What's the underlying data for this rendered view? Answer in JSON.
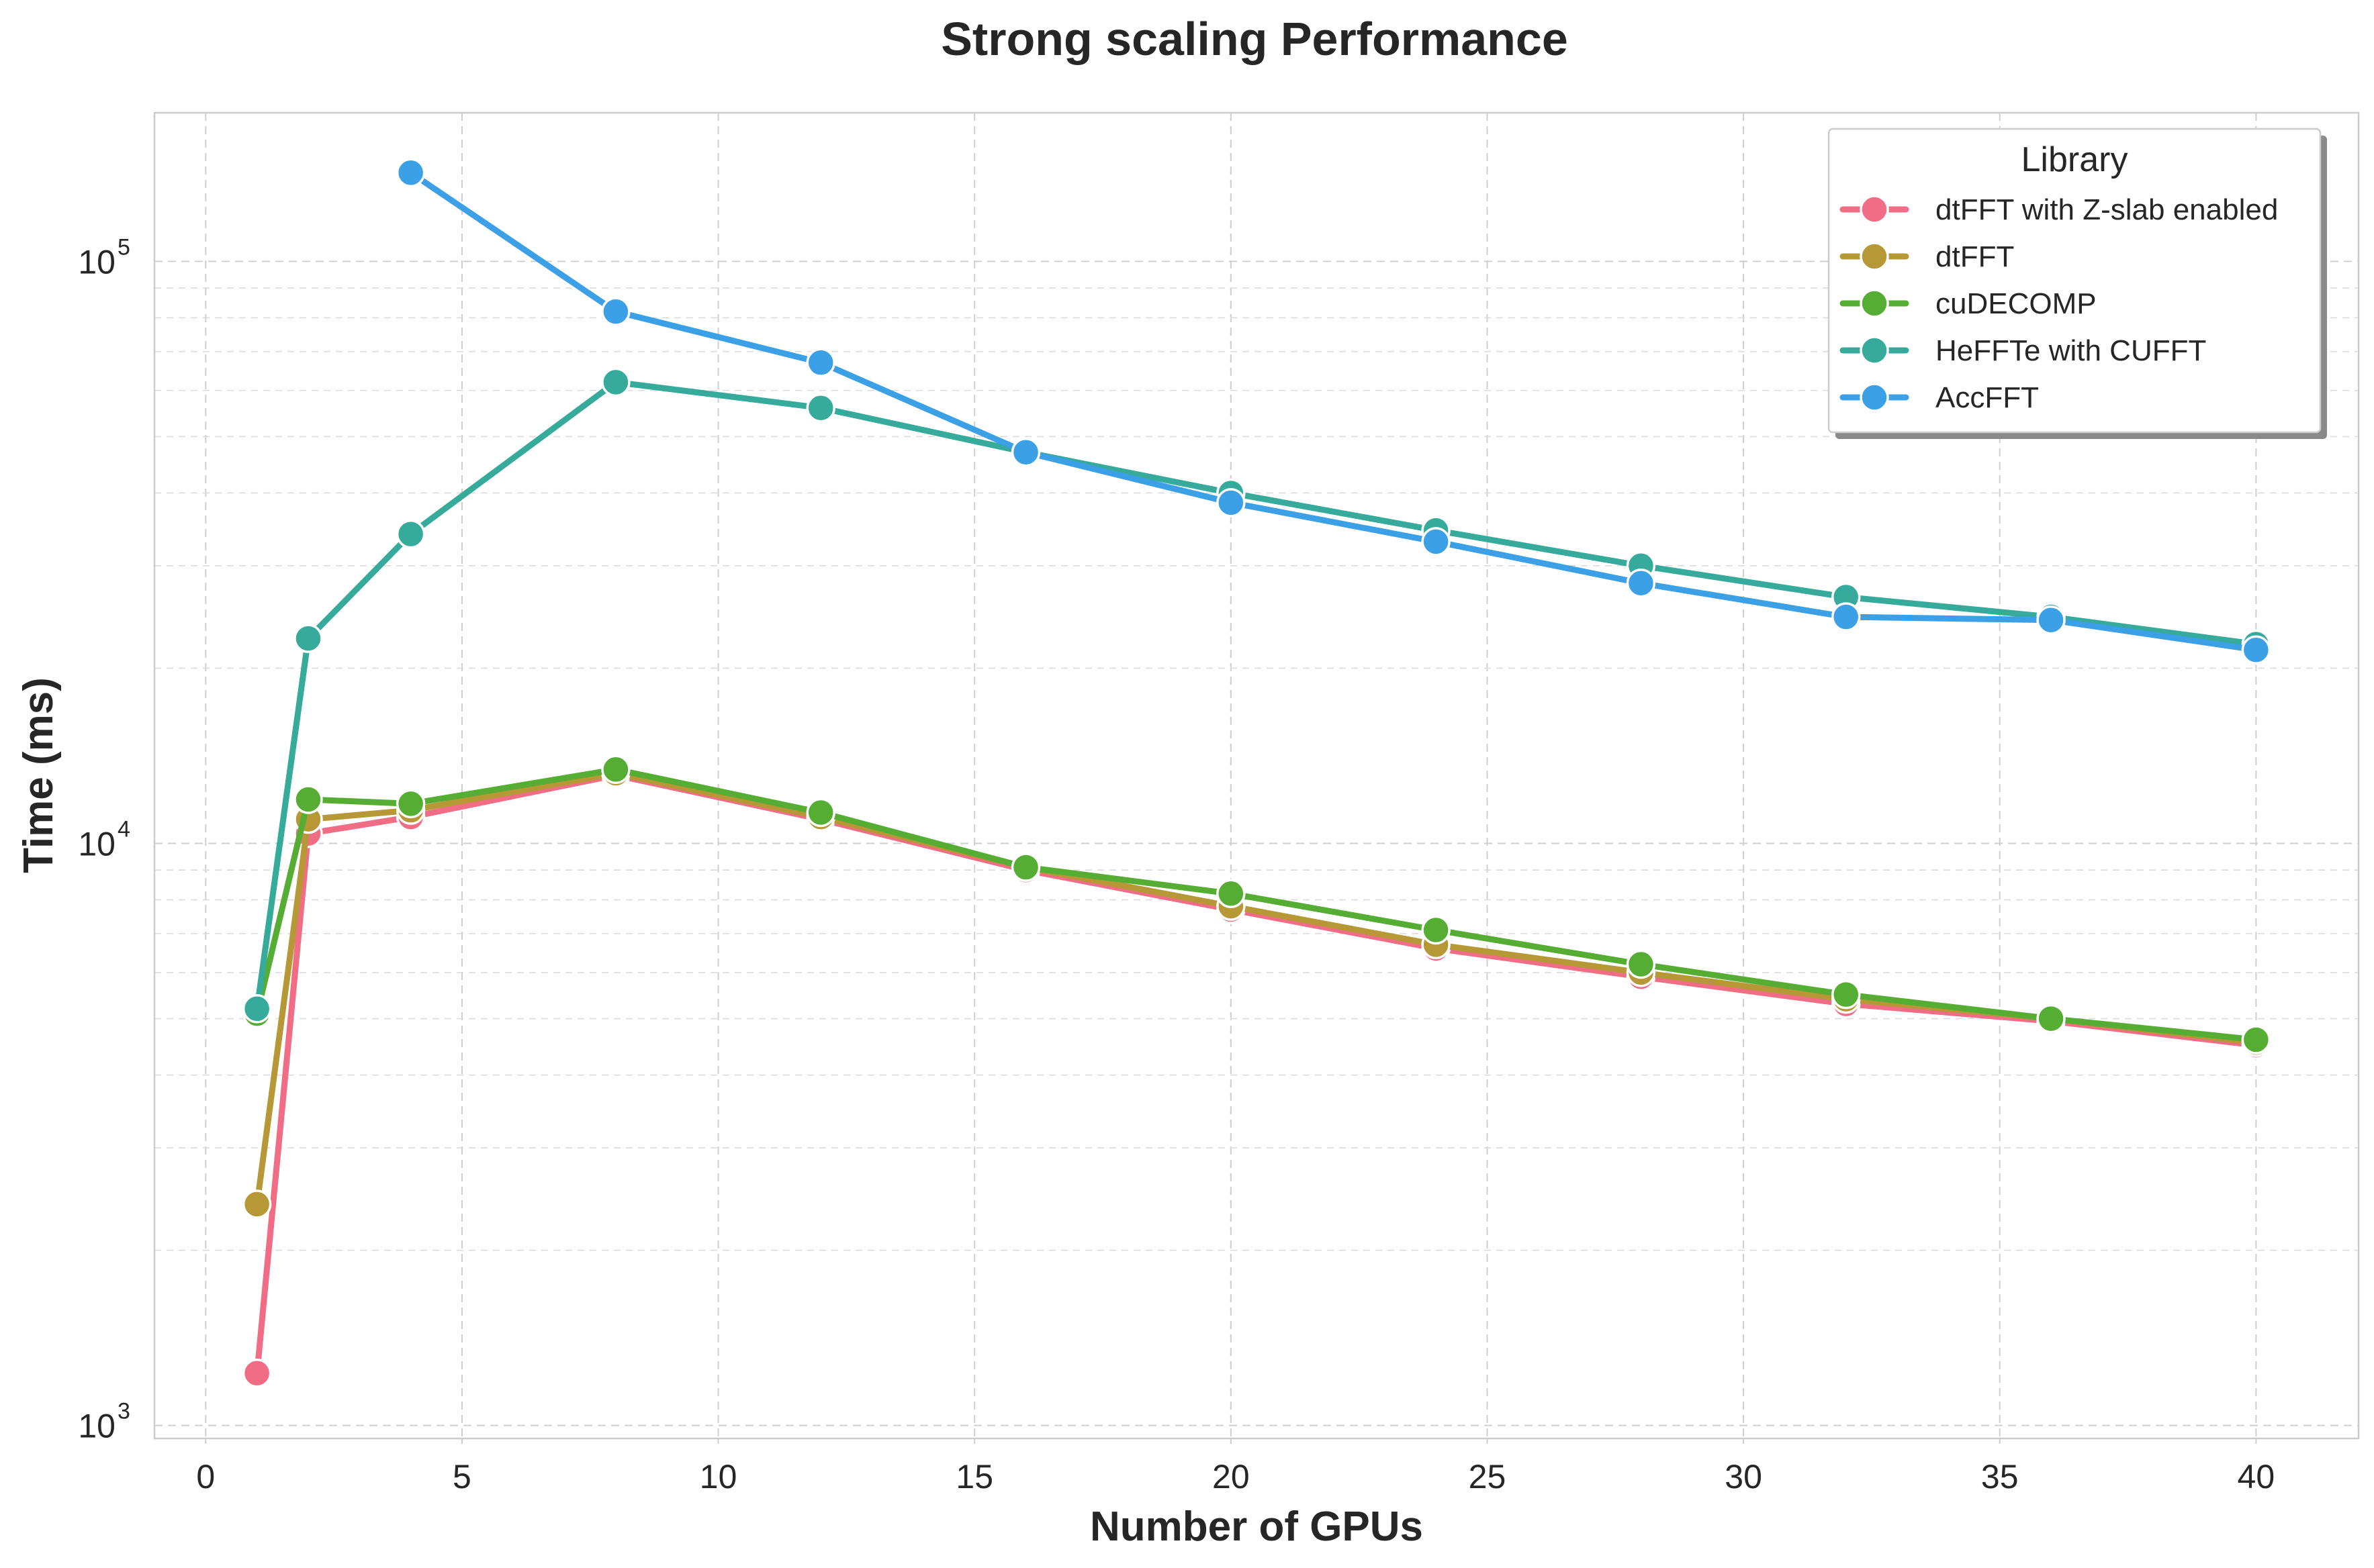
{
  "chart_data": {
    "type": "line",
    "title": "Strong scaling Performance",
    "xlabel": "Number of GPUs",
    "ylabel": "Time (ms)",
    "xlim": [
      -1,
      42
    ],
    "ylim": [
      950,
      180000
    ],
    "yscale": "log",
    "x_ticks": [
      "0",
      "5",
      "10",
      "15",
      "20",
      "25",
      "30",
      "35",
      "40"
    ],
    "y_ticks": [
      {
        "base": "10",
        "exp": "3"
      },
      {
        "base": "10",
        "exp": "4"
      },
      {
        "base": "10",
        "exp": "5"
      }
    ],
    "grid": true,
    "legend": {
      "title": "Library",
      "position": "top-right"
    },
    "series": [
      {
        "name": "dtFFT with Z-slab enabled",
        "color": "#f16c85",
        "x": [
          1,
          2,
          4,
          8,
          12,
          16,
          20,
          24,
          28,
          32,
          36,
          40
        ],
        "values": [
          1230,
          10400,
          11100,
          13100,
          11000,
          9000,
          7700,
          6600,
          5900,
          5300,
          4950,
          4500
        ]
      },
      {
        "name": "dtFFT",
        "color": "#b79836",
        "x": [
          1,
          2,
          4,
          8,
          12,
          16,
          20,
          24,
          28,
          32,
          36,
          40
        ],
        "values": [
          2400,
          11000,
          11400,
          13200,
          11100,
          9100,
          7800,
          6700,
          6000,
          5400,
          5000,
          4550
        ]
      },
      {
        "name": "cuDECOMP",
        "color": "#56ad34",
        "x": [
          1,
          2,
          4,
          8,
          12,
          16,
          20,
          24,
          28,
          32,
          36,
          40
        ],
        "values": [
          5100,
          11900,
          11700,
          13400,
          11300,
          9100,
          8200,
          7100,
          6200,
          5500,
          5000,
          4600
        ]
      },
      {
        "name": "HeFFTe with CUFFT",
        "color": "#36aa9b",
        "x": [
          1,
          2,
          4,
          8,
          12,
          16,
          20,
          24,
          28,
          32,
          36,
          40
        ],
        "values": [
          5200,
          22500,
          34000,
          62000,
          56000,
          47000,
          40000,
          34500,
          30000,
          26500,
          24500,
          22000
        ]
      },
      {
        "name": "AccFFT",
        "color": "#3ca0e6",
        "x": [
          4,
          8,
          12,
          16,
          20,
          24,
          28,
          32,
          36,
          40
        ],
        "values": [
          142000,
          82000,
          67000,
          47000,
          38500,
          33000,
          28000,
          24500,
          24200,
          21500
        ]
      }
    ]
  }
}
